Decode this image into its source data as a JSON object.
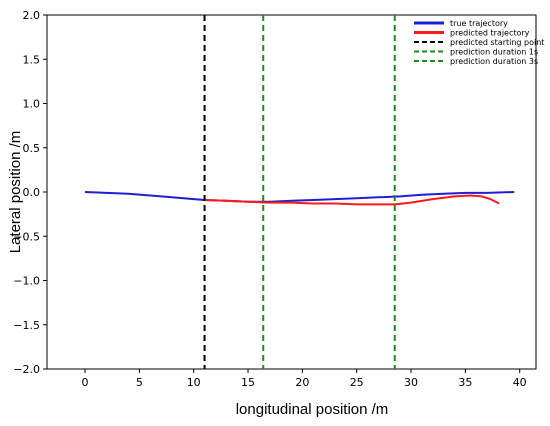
{
  "chart_data": {
    "type": "line",
    "xlabel": "longitudinal position /m",
    "ylabel": "Lateral position /m",
    "xlim": [
      -3.5,
      41.5
    ],
    "ylim": [
      -2.0,
      2.0
    ],
    "x_ticks": [
      0,
      5,
      10,
      15,
      20,
      25,
      30,
      35,
      40
    ],
    "y_ticks": [
      2.0,
      1.5,
      1.0,
      0.5,
      0.0,
      -0.5,
      -1.0,
      -1.5,
      -2.0
    ],
    "x_tick_labels": [
      "0",
      "5",
      "10",
      "15",
      "20",
      "25",
      "30",
      "35",
      "40"
    ],
    "y_tick_labels": [
      "2.0",
      "1.5",
      "1.0",
      "0.5",
      "0.0",
      "−0.5",
      "−1.0",
      "−1.5",
      "−2.0"
    ],
    "grid": false,
    "legend_position": "top-right",
    "series": [
      {
        "name": "true trajectory",
        "color": "#1f1fd1",
        "style": "solid",
        "x": [
          0,
          2,
          4,
          6,
          8,
          10,
          11,
          13,
          15,
          17,
          19,
          21,
          23,
          25,
          27,
          29,
          31,
          33,
          35,
          37,
          39.5
        ],
        "y": [
          0.0,
          -0.01,
          -0.02,
          -0.04,
          -0.06,
          -0.08,
          -0.09,
          -0.1,
          -0.11,
          -0.11,
          -0.1,
          -0.09,
          -0.08,
          -0.07,
          -0.06,
          -0.05,
          -0.03,
          -0.02,
          -0.01,
          -0.01,
          0.0
        ]
      },
      {
        "name": "predicted trajectory",
        "color": "#ff1a1a",
        "style": "solid",
        "x": [
          11,
          13,
          15,
          17,
          19,
          21,
          23,
          25,
          27,
          28.5,
          30,
          32,
          34,
          35.5,
          36.5,
          37.3,
          38.1
        ],
        "y": [
          -0.09,
          -0.1,
          -0.11,
          -0.12,
          -0.12,
          -0.13,
          -0.13,
          -0.14,
          -0.14,
          -0.14,
          -0.12,
          -0.08,
          -0.05,
          -0.04,
          -0.05,
          -0.08,
          -0.13
        ]
      },
      {
        "name": "predicted starting point",
        "color": "#000000",
        "style": "dashed",
        "vline": 11.0
      },
      {
        "name": "prediction duration 1s",
        "color": "#1a8c1a",
        "style": "dashed",
        "vline": 16.4
      },
      {
        "name": "prediction duration 3s",
        "color": "#1a8c1a",
        "style": "dashed",
        "vline": 28.5
      }
    ]
  }
}
